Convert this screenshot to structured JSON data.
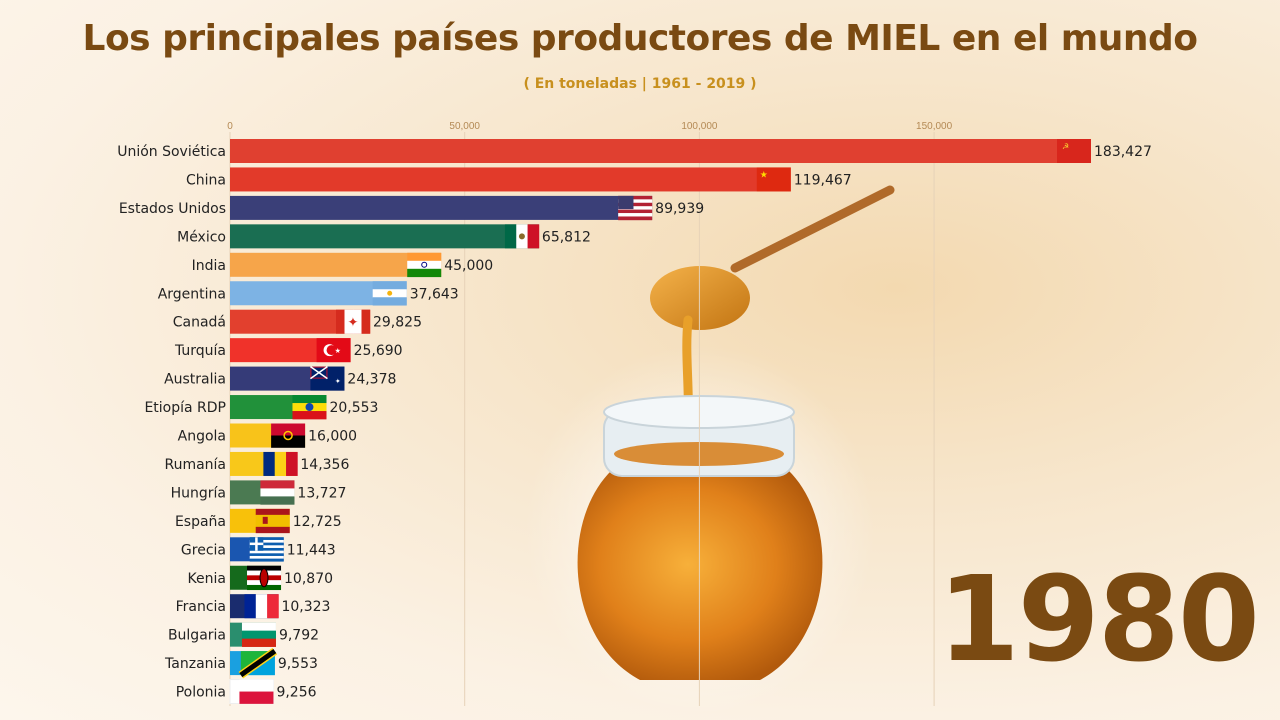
{
  "header": {
    "title": "Los principales países productores de MIEL en el mundo",
    "subtitle": "( En toneladas | 1961 - 2019 )"
  },
  "year_label": "1980",
  "chart_data": {
    "type": "bar",
    "orientation": "horizontal",
    "xlim": [
      0,
      183427
    ],
    "x_ticks": [
      0,
      50000,
      100000,
      150000
    ],
    "x_tick_labels": [
      "0",
      "50,000",
      "100,000",
      "150,000"
    ],
    "grid": true,
    "categories": [
      "Unión Soviética",
      "China",
      "Estados Unidos",
      "México",
      "India",
      "Argentina",
      "Canadá",
      "Turquía",
      "Australia",
      "Etiopía RDP",
      "Angola",
      "Rumanía",
      "Hungría",
      "España",
      "Grecia",
      "Kenia",
      "Francia",
      "Bulgaria",
      "Tanzania",
      "Polonia"
    ],
    "values": [
      183427,
      119467,
      89939,
      65812,
      45000,
      37643,
      29825,
      25690,
      24378,
      20553,
      16000,
      14356,
      13727,
      12725,
      11443,
      10870,
      10323,
      9792,
      9553,
      9256
    ],
    "value_labels": [
      "183,427",
      "119,467",
      "89,939",
      "65,812",
      "45,000",
      "37,643",
      "29,825",
      "25,690",
      "24,378",
      "20,553",
      "16,000",
      "14,356",
      "13,727",
      "12,725",
      "11,443",
      "10,870",
      "10,323",
      "9,792",
      "9,553",
      "9,256"
    ],
    "colors": [
      "#e04030",
      "#e23a2a",
      "#3a3f78",
      "#1a6e52",
      "#f6a54a",
      "#7db3e4",
      "#e2402e",
      "#f0322a",
      "#353b78",
      "#21913a",
      "#f8c31a",
      "#f8c81a",
      "#4b7a52",
      "#f8c10a",
      "#1a56b0",
      "#156a1c",
      "#1a2c6e",
      "#2a8e6e",
      "#1aa0e0",
      "#ffffff"
    ],
    "flag_icons": [
      "soviet-flag-icon",
      "china-flag-icon",
      "usa-flag-icon",
      "mexico-flag-icon",
      "india-flag-icon",
      "argentina-flag-icon",
      "canada-flag-icon",
      "turkey-flag-icon",
      "australia-flag-icon",
      "ethiopia-flag-icon",
      "angola-flag-icon",
      "romania-flag-icon",
      "hungary-flag-icon",
      "spain-flag-icon",
      "greece-flag-icon",
      "kenya-flag-icon",
      "france-flag-icon",
      "bulgaria-flag-icon",
      "tanzania-flag-icon",
      "poland-flag-icon"
    ]
  },
  "decor": {
    "honey_color": "#e08a1a",
    "glass_color": "#dfe6ea",
    "dipper_color": "#b06a2a"
  }
}
